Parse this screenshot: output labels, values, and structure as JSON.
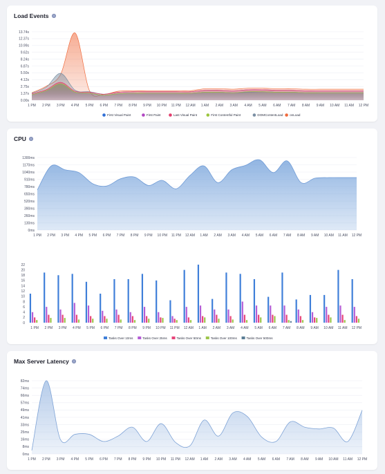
{
  "load_events": {
    "title": "Load Events",
    "chart_data": {
      "type": "area",
      "title": "Load Events",
      "x": [
        "1 PM",
        "2 PM",
        "3 PM",
        "4 PM",
        "5 PM",
        "6 PM",
        "7 PM",
        "8 PM",
        "9 PM",
        "10 PM",
        "11 PM",
        "12 AM",
        "1 AM",
        "2 AM",
        "3 AM",
        "4 AM",
        "5 AM",
        "6 AM",
        "7 AM",
        "8 AM",
        "9 AM",
        "10 AM",
        "11 AM",
        "12 PM"
      ],
      "y_ticks": [
        "0.00s",
        "1.37s",
        "2.75s",
        "4.12s",
        "5.50s",
        "6.87s",
        "8.24s",
        "9.62s",
        "10.99s",
        "12.37s",
        "13.74s"
      ],
      "ylim": [
        0,
        13.74
      ],
      "series": [
        {
          "name": "First Visual Paint",
          "color": "#2f6fd6",
          "values": [
            1.1,
            1.9,
            3.2,
            1.6,
            1.4,
            1.0,
            1.3,
            1.4,
            1.4,
            1.4,
            1.4,
            1.4,
            1.6,
            1.6,
            1.5,
            1.6,
            1.7,
            1.6,
            1.6,
            1.5,
            1.5,
            1.5,
            1.5,
            1.5
          ]
        },
        {
          "name": "First Paint",
          "color": "#b146c2",
          "values": [
            1.1,
            1.9,
            3.3,
            1.6,
            1.4,
            1.0,
            1.3,
            1.4,
            1.4,
            1.4,
            1.4,
            1.4,
            1.6,
            1.6,
            1.5,
            1.7,
            1.7,
            1.6,
            1.6,
            1.5,
            1.5,
            1.5,
            1.5,
            1.5
          ]
        },
        {
          "name": "Last Visual Paint",
          "color": "#e23d6d",
          "values": [
            1.3,
            2.1,
            3.6,
            1.8,
            1.6,
            1.2,
            1.6,
            1.7,
            1.7,
            1.7,
            1.7,
            1.7,
            2.0,
            2.0,
            1.9,
            2.1,
            2.1,
            2.0,
            2.0,
            1.9,
            1.9,
            1.9,
            1.9,
            1.9
          ]
        },
        {
          "name": "First Contentful Paint",
          "color": "#9bc53d",
          "values": [
            1.1,
            1.9,
            3.3,
            1.6,
            1.4,
            1.0,
            1.3,
            1.4,
            1.4,
            1.4,
            1.4,
            1.4,
            1.6,
            1.6,
            1.5,
            1.7,
            1.7,
            1.6,
            1.6,
            1.5,
            1.5,
            1.5,
            1.5,
            1.5
          ]
        },
        {
          "name": "DOMContentLoad",
          "color": "#7a8fa3",
          "values": [
            1.4,
            2.6,
            5.4,
            2.0,
            1.7,
            1.2,
            1.6,
            1.7,
            1.7,
            1.7,
            1.7,
            1.7,
            2.0,
            2.0,
            1.9,
            2.1,
            2.1,
            2.0,
            2.0,
            1.9,
            1.9,
            1.9,
            1.9,
            1.9
          ]
        },
        {
          "name": "onLoad",
          "color": "#f06a3c",
          "values": [
            1.5,
            2.8,
            5.2,
            13.5,
            1.9,
            1.2,
            1.8,
            1.9,
            1.9,
            1.9,
            1.9,
            1.9,
            2.3,
            2.3,
            2.2,
            2.4,
            2.4,
            2.3,
            2.3,
            2.2,
            2.2,
            2.2,
            2.2,
            2.2
          ]
        }
      ]
    }
  },
  "cpu": {
    "title": "CPU",
    "area_chart_data": {
      "type": "area",
      "x": [
        "1 PM",
        "2 PM",
        "3 PM",
        "4 PM",
        "5 PM",
        "6 PM",
        "7 PM",
        "8 PM",
        "9 PM",
        "10 PM",
        "11 PM",
        "12 AM",
        "1 AM",
        "2 AM",
        "3 AM",
        "4 AM",
        "5 AM",
        "6 AM",
        "7 AM",
        "8 AM",
        "9 AM",
        "10 AM",
        "11 AM",
        "12 PM"
      ],
      "y_ticks": [
        "0ms",
        "130ms",
        "260ms",
        "390ms",
        "520ms",
        "650ms",
        "780ms",
        "910ms",
        "1040ms",
        "1170ms",
        "1300ms"
      ],
      "ylim": [
        0,
        1300
      ],
      "color": "#7ea8dd",
      "values": [
        720,
        1150,
        1080,
        1030,
        830,
        790,
        920,
        950,
        800,
        890,
        740,
        980,
        1150,
        850,
        1080,
        1160,
        1260,
        1030,
        1240,
        850,
        930,
        940,
        940,
        940
      ]
    },
    "bar_chart_data": {
      "type": "bar",
      "categories": [
        "1 PM",
        "2 PM",
        "3 PM",
        "4 PM",
        "5 PM",
        "6 PM",
        "7 PM",
        "8 PM",
        "9 PM",
        "10 PM",
        "11 PM",
        "12 AM",
        "1 AM",
        "2 AM",
        "3 AM",
        "4 AM",
        "5 AM",
        "6 AM",
        "7 AM",
        "8 AM",
        "9 AM",
        "10 AM",
        "11 AM",
        "12 PM"
      ],
      "y_ticks": [
        "0",
        "2",
        "4",
        "6",
        "8",
        "10",
        "12",
        "14",
        "16",
        "18",
        "20",
        "22"
      ],
      "ylim": [
        0,
        22
      ],
      "series": [
        {
          "name": "Tasks Over 10ms",
          "color": "#3f7fd9",
          "values": [
            11,
            19,
            18,
            18.5,
            15.5,
            11,
            16.5,
            16.5,
            18.5,
            16,
            8.5,
            20,
            22,
            9,
            19,
            18.5,
            16.5,
            9.8,
            19,
            8.8,
            10.5,
            10.5,
            20,
            16.5
          ]
        },
        {
          "name": "Tasks Over 25ms",
          "color": "#b45cd6",
          "values": [
            4,
            6,
            5,
            7.5,
            6.5,
            4.5,
            5,
            4,
            6,
            4,
            2.5,
            6,
            6.5,
            5,
            5,
            8,
            6.5,
            6.5,
            6.5,
            5,
            4,
            6,
            6.5,
            6
          ]
        },
        {
          "name": "Tasks Over 50ms",
          "color": "#e6457a",
          "values": [
            2,
            3,
            3,
            3,
            2.5,
            2.5,
            3,
            2.5,
            2.5,
            2,
            1.5,
            2,
            2.5,
            3,
            2.5,
            3,
            3,
            3,
            3,
            2.5,
            2,
            3,
            3,
            2.5
          ]
        },
        {
          "name": "Tasks Over 100ms",
          "color": "#9dc54a",
          "values": [
            1,
            1.8,
            1.8,
            1.2,
            1.5,
            1.5,
            1.2,
            1,
            1.5,
            1.8,
            1,
            1,
            2,
            1.5,
            1.2,
            1,
            2,
            2.5,
            1,
            1,
            1.8,
            2,
            1,
            1.5
          ]
        },
        {
          "name": "Tasks Over 500ms",
          "color": "#5a7d94",
          "values": [
            0,
            0,
            0,
            0,
            0,
            0,
            0,
            0,
            0,
            0,
            0,
            0,
            0,
            0,
            0,
            0,
            0,
            0,
            0.6,
            0,
            0,
            0,
            0,
            0
          ]
        }
      ]
    }
  },
  "latency": {
    "title": "Max Server Latency",
    "chart_data": {
      "type": "area",
      "x": [
        "1 PM",
        "2 PM",
        "3 PM",
        "4 PM",
        "5 PM",
        "6 PM",
        "7 PM",
        "8 PM",
        "9 PM",
        "10 PM",
        "11 PM",
        "12 AM",
        "1 AM",
        "2 AM",
        "3 AM",
        "4 AM",
        "5 AM",
        "6 AM",
        "7 AM",
        "8 AM",
        "9 AM",
        "10 AM",
        "11 AM",
        "12 PM"
      ],
      "y_ticks": [
        "0ms",
        "8ms",
        "16ms",
        "25ms",
        "33ms",
        "41ms",
        "49ms",
        "57ms",
        "66ms",
        "74ms",
        "82ms"
      ],
      "ylim": [
        0,
        82
      ],
      "color": "#a9c3e6",
      "values": [
        4,
        82,
        16,
        22,
        22,
        14,
        20,
        30,
        14,
        34,
        13,
        9,
        38,
        20,
        46,
        42,
        19,
        14,
        36,
        30,
        28,
        29,
        14,
        49
      ]
    }
  }
}
